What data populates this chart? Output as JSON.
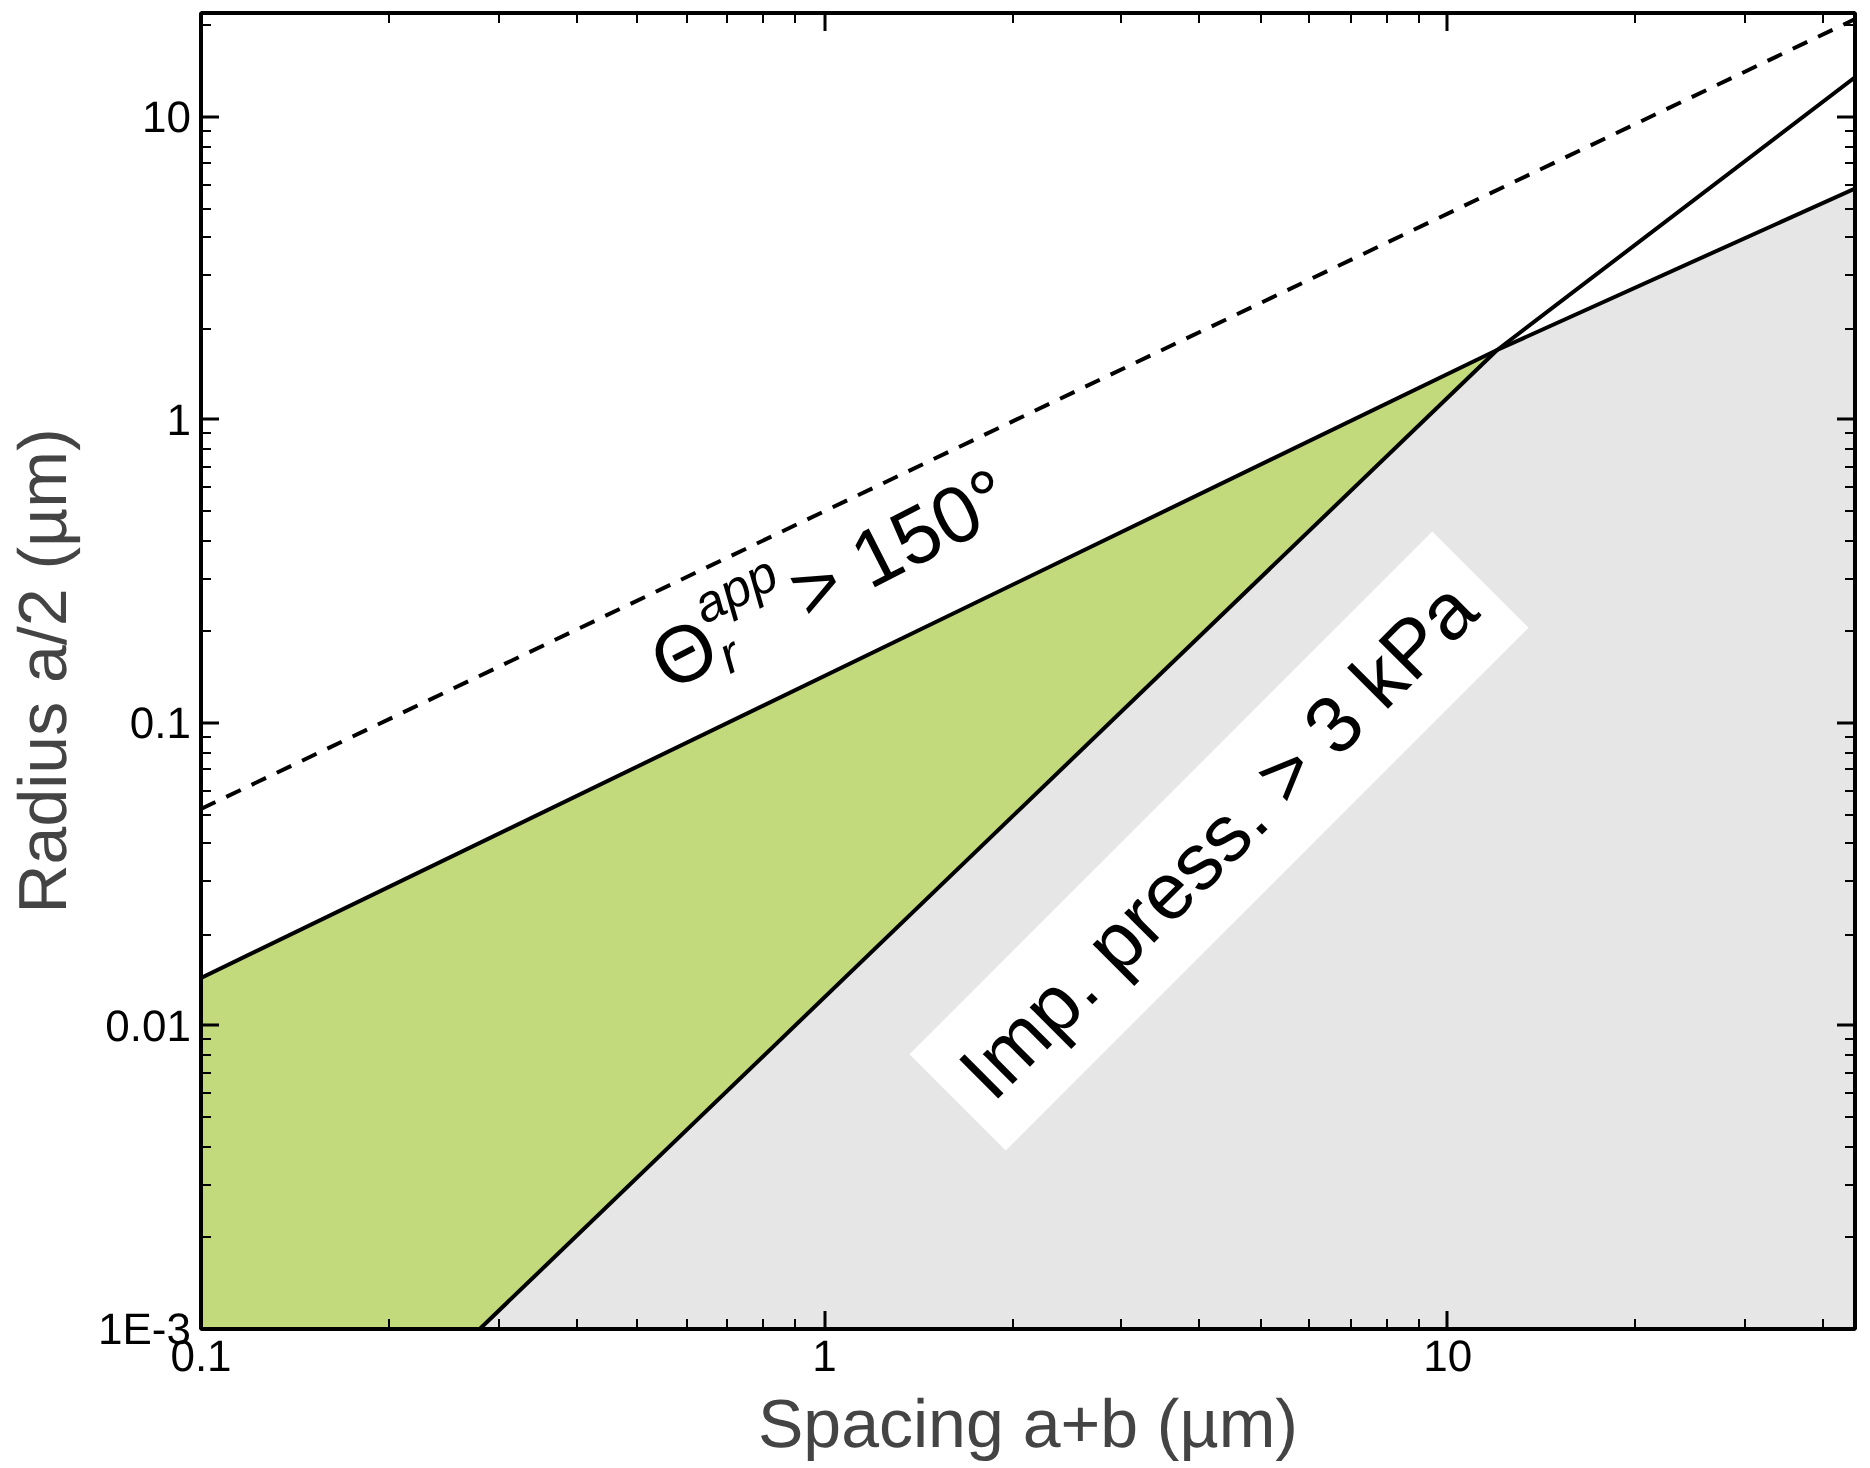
{
  "chart_data": {
    "type": "line",
    "xlabel": "Spacing a+b (µm)",
    "ylabel": "Radius a/2 (µm)",
    "log": "xy",
    "grid": false,
    "xlim": [
      0.1,
      45
    ],
    "ylim": [
      0.001,
      22
    ],
    "xticks": [
      0.1,
      1,
      10
    ],
    "yticks": [
      {
        "value": 0.001,
        "label": "1E-3"
      },
      0.01,
      0.1,
      1,
      10
    ],
    "series": [
      {
        "type": "area",
        "color": "#c2d97c",
        "x": [
          0.1,
          12
        ],
        "values": [
          0.0144,
          1.7
        ]
      },
      {
        "type": "area",
        "color": "#e6e6e6",
        "x": [
          0.28,
          12,
          45
        ],
        "values": [
          0.001,
          1.7,
          5.8
        ]
      },
      {
        "color": "#000000",
        "line_style": "dashed",
        "x": [
          0.1,
          45
        ],
        "values": [
          0.052,
          21
        ]
      },
      {
        "color": "#000000",
        "line_style": "solid",
        "x": [
          0.1,
          12,
          45
        ],
        "values": [
          0.0144,
          1.7,
          5.8
        ]
      },
      {
        "color": "#000000",
        "line_style": "solid",
        "x": [
          0.28,
          12,
          45
        ],
        "values": [
          0.001,
          1.7,
          13.5
        ]
      }
    ],
    "annotations": [
      "Θ$_{r}$$^{app}$ > 150°",
      "Imp. press. > 3 kPa"
    ]
  }
}
